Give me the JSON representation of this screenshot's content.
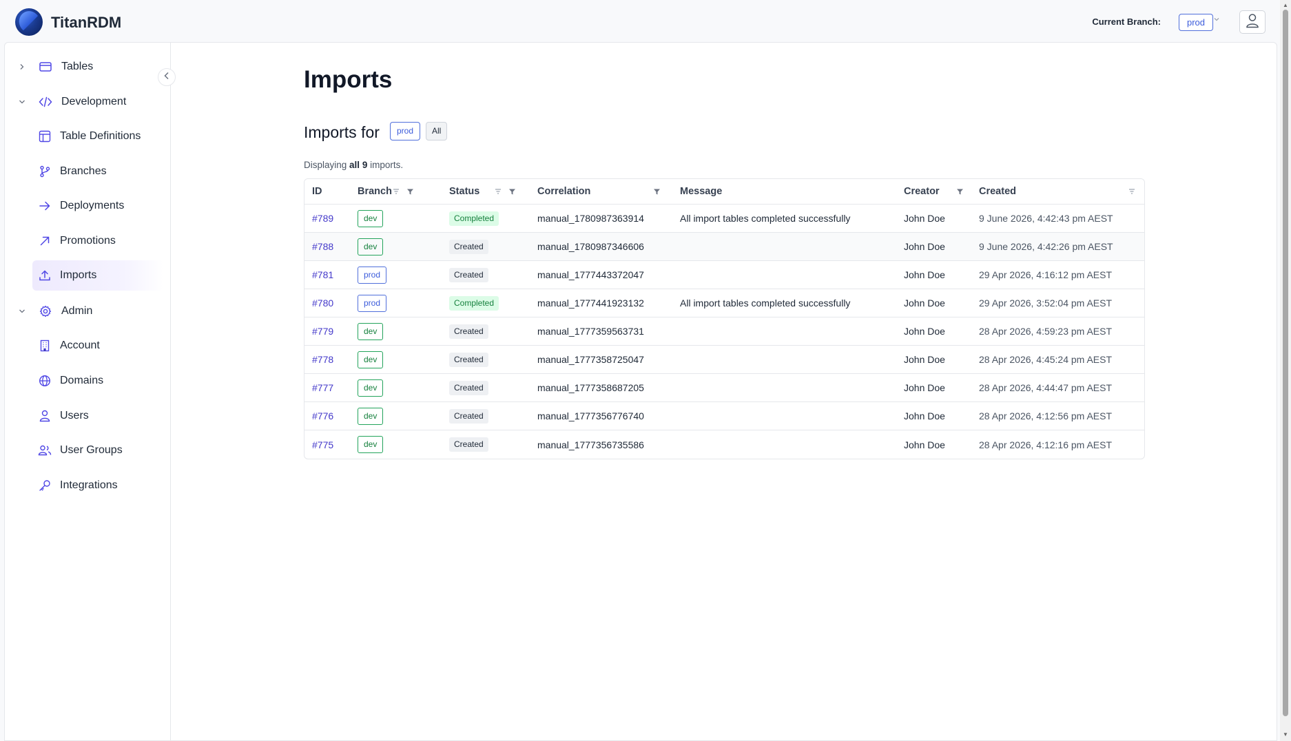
{
  "app": {
    "name": "TitanRDM"
  },
  "header": {
    "branch_label": "Current Branch:",
    "branch_value": "prod"
  },
  "sidebar": {
    "groups": [
      {
        "label": "Tables",
        "expanded": false,
        "icon": "table-icon"
      },
      {
        "label": "Development",
        "expanded": true,
        "icon": "code-icon",
        "items": [
          {
            "label": "Table Definitions",
            "icon": "table-grid-icon"
          },
          {
            "label": "Branches",
            "icon": "git-branch-icon"
          },
          {
            "label": "Deployments",
            "icon": "arrow-right-icon"
          },
          {
            "label": "Promotions",
            "icon": "arrow-up-right-icon"
          },
          {
            "label": "Imports",
            "icon": "upload-icon",
            "active": true
          }
        ]
      },
      {
        "label": "Admin",
        "expanded": true,
        "icon": "gear-icon",
        "items": [
          {
            "label": "Account",
            "icon": "building-icon"
          },
          {
            "label": "Domains",
            "icon": "globe-icon"
          },
          {
            "label": "Users",
            "icon": "user-icon"
          },
          {
            "label": "User Groups",
            "icon": "users-icon"
          },
          {
            "label": "Integrations",
            "icon": "key-icon"
          }
        ]
      }
    ]
  },
  "main": {
    "title": "Imports",
    "subtitle": "Imports for",
    "filter_branch": "prod",
    "filter_all": "All",
    "displaying": {
      "prefix": "Displaying",
      "all": "all",
      "count": "9",
      "suffix": "imports."
    },
    "table": {
      "headers": {
        "id": "ID",
        "branch": "Branch",
        "status": "Status",
        "correlation": "Correlation",
        "message": "Message",
        "creator": "Creator",
        "created": "Created"
      },
      "rows": [
        {
          "id": "#789",
          "branch": "dev",
          "status": "Completed",
          "correlation": "manual_1780987363914",
          "message": "All import tables completed successfully",
          "creator": "John Doe",
          "created": "9 June 2026, 4:42:43 pm AEST"
        },
        {
          "id": "#788",
          "branch": "dev",
          "status": "Created",
          "correlation": "manual_1780987346606",
          "message": "",
          "creator": "John Doe",
          "created": "9 June 2026, 4:42:26 pm AEST"
        },
        {
          "id": "#781",
          "branch": "prod",
          "status": "Created",
          "correlation": "manual_1777443372047",
          "message": "",
          "creator": "John Doe",
          "created": "29 Apr 2026, 4:16:12 pm AEST"
        },
        {
          "id": "#780",
          "branch": "prod",
          "status": "Completed",
          "correlation": "manual_1777441923132",
          "message": "All import tables completed successfully",
          "creator": "John Doe",
          "created": "29 Apr 2026, 3:52:04 pm AEST"
        },
        {
          "id": "#779",
          "branch": "dev",
          "status": "Created",
          "correlation": "manual_1777359563731",
          "message": "",
          "creator": "John Doe",
          "created": "28 Apr 2026, 4:59:23 pm AEST"
        },
        {
          "id": "#778",
          "branch": "dev",
          "status": "Created",
          "correlation": "manual_1777358725047",
          "message": "",
          "creator": "John Doe",
          "created": "28 Apr 2026, 4:45:24 pm AEST"
        },
        {
          "id": "#777",
          "branch": "dev",
          "status": "Created",
          "correlation": "manual_1777358687205",
          "message": "",
          "creator": "John Doe",
          "created": "28 Apr 2026, 4:44:47 pm AEST"
        },
        {
          "id": "#776",
          "branch": "dev",
          "status": "Created",
          "correlation": "manual_1777356776740",
          "message": "",
          "creator": "John Doe",
          "created": "28 Apr 2026, 4:12:56 pm AEST"
        },
        {
          "id": "#775",
          "branch": "dev",
          "status": "Created",
          "correlation": "manual_1777356735586",
          "message": "",
          "creator": "John Doe",
          "created": "28 Apr 2026, 4:12:16 pm AEST"
        }
      ]
    }
  },
  "colors": {
    "accent": "#4338ca",
    "dev": "#15803d",
    "prod": "#3b5bdb",
    "completed_bg": "#dcfce7"
  }
}
